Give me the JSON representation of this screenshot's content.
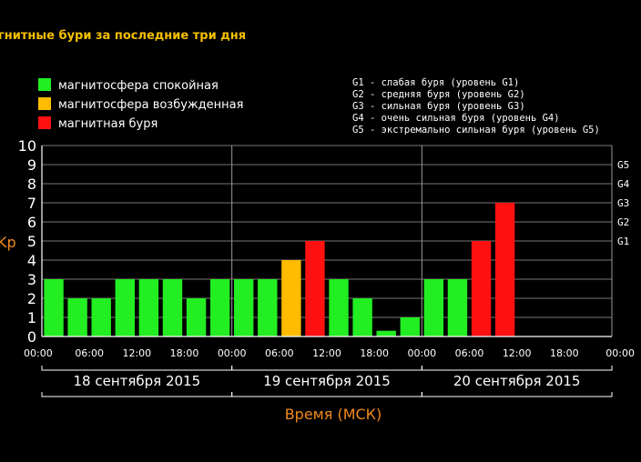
{
  "title": "гнитные бури за последние три дня",
  "colors": {
    "quiet": "#22ee22",
    "excited": "#ffbb00",
    "storm": "#ff1111",
    "accent": "#f08a1c",
    "title": "#f5c000"
  },
  "legend": [
    {
      "label": "магнитосфера спокойная",
      "color": "#22ee22"
    },
    {
      "label": "магнитосфера возбужденная",
      "color": "#ffbb00"
    },
    {
      "label": "магнитная буря",
      "color": "#ff1111"
    }
  ],
  "g_legend": [
    "G1 - слабая буря (уровень G1)",
    "G2 - средняя буря (уровень G2)",
    "G3 - сильная буря (уровень G3)",
    "G4 - очень сильная буря (уровень G4)",
    "G5 - экстремально сильная буря (уровень G5)"
  ],
  "chart_data": {
    "type": "bar",
    "ylabel": "Kp",
    "xlabel": "Время (МСК)",
    "ylim": [
      0,
      10
    ],
    "yticks": [
      "0",
      "1",
      "2",
      "3",
      "4",
      "5",
      "6",
      "7",
      "8",
      "9",
      "10"
    ],
    "g_levels": [
      {
        "label": "G1",
        "value": 5
      },
      {
        "label": "G2",
        "value": 6
      },
      {
        "label": "G3",
        "value": 7
      },
      {
        "label": "G4",
        "value": 8
      },
      {
        "label": "G5",
        "value": 9
      }
    ],
    "time_ticks": [
      "00:00",
      "06:00",
      "12:00",
      "18:00",
      "00:00",
      "06:00",
      "12:00",
      "18:00",
      "00:00",
      "06:00",
      "12:00",
      "18:00",
      "00:00"
    ],
    "days": [
      "18 сентября 2015",
      "19 сентября 2015",
      "20 сентября 2015"
    ],
    "grid": true,
    "bars": [
      {
        "value": 3,
        "status": "quiet"
      },
      {
        "value": 2,
        "status": "quiet"
      },
      {
        "value": 2,
        "status": "quiet"
      },
      {
        "value": 3,
        "status": "quiet"
      },
      {
        "value": 3,
        "status": "quiet"
      },
      {
        "value": 3,
        "status": "quiet"
      },
      {
        "value": 2,
        "status": "quiet"
      },
      {
        "value": 3,
        "status": "quiet"
      },
      {
        "value": 3,
        "status": "quiet"
      },
      {
        "value": 3,
        "status": "quiet"
      },
      {
        "value": 4,
        "status": "excited"
      },
      {
        "value": 5,
        "status": "storm"
      },
      {
        "value": 3,
        "status": "quiet"
      },
      {
        "value": 2,
        "status": "quiet"
      },
      {
        "value": 0.3,
        "status": "quiet"
      },
      {
        "value": 1,
        "status": "quiet"
      },
      {
        "value": 3,
        "status": "quiet"
      },
      {
        "value": 3,
        "status": "quiet"
      },
      {
        "value": 5,
        "status": "storm"
      },
      {
        "value": 7,
        "status": "storm"
      }
    ]
  }
}
